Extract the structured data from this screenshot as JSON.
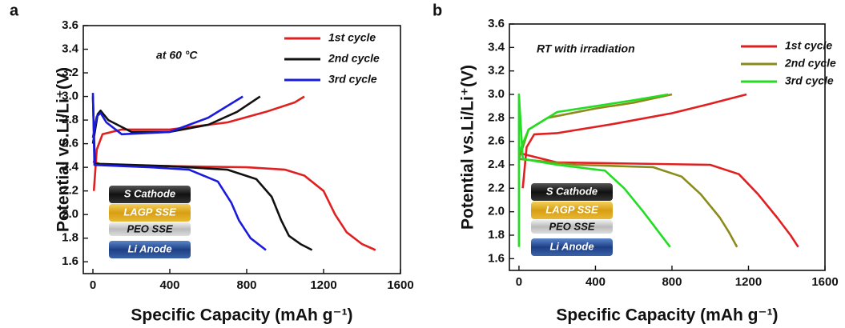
{
  "chart_data": [
    {
      "type": "line",
      "panel": "a",
      "annotation": "at 60 °C",
      "xlabel": "Specific Capacity (mAh g⁻¹)",
      "ylabel": "Potential vs.Li/Li⁺(V)",
      "xlim": [
        -50,
        1600
      ],
      "xticks": [
        0,
        400,
        800,
        1200,
        1600
      ],
      "ylim": [
        1.5,
        3.6
      ],
      "yticks": [
        1.6,
        1.8,
        {
          "value": 2,
          "label": "2.0"
        },
        2.2,
        2.4,
        2.6,
        2.8,
        {
          "value": 3,
          "label": "3.0"
        },
        3.2,
        3.4,
        3.6
      ],
      "inset_layers": [
        "S Cathode",
        "LAGP SSE",
        "PEO SSE",
        "Li Anode"
      ],
      "series": [
        {
          "name": "1st cycle",
          "color": "#e02020",
          "x": [
            0,
            50,
            400,
            800,
            1000,
            1100,
            1200,
            1260,
            1320,
            1400,
            1470,
            null,
            5,
            20,
            50,
            150,
            400,
            700,
            900,
            1050,
            1100
          ],
          "values": [
            2.45,
            2.42,
            2.41,
            2.4,
            2.38,
            2.33,
            2.2,
            2.0,
            1.85,
            1.75,
            1.7,
            null,
            2.2,
            2.55,
            2.68,
            2.72,
            2.72,
            2.78,
            2.87,
            2.95,
            3.0
          ]
        },
        {
          "name": "2nd cycle",
          "color": "#111111",
          "x": [
            0,
            10,
            400,
            700,
            850,
            930,
            980,
            1020,
            1080,
            1140,
            null,
            0,
            25,
            40,
            80,
            200,
            400,
            600,
            750,
            870
          ],
          "values": [
            3.0,
            2.43,
            2.41,
            2.38,
            2.3,
            2.15,
            1.95,
            1.82,
            1.75,
            1.7,
            null,
            2.6,
            2.85,
            2.88,
            2.8,
            2.7,
            2.7,
            2.76,
            2.87,
            3.0
          ]
        },
        {
          "name": "3rd cycle",
          "color": "#1a1adc",
          "x": [
            0,
            8,
            300,
            500,
            650,
            720,
            760,
            820,
            900,
            null,
            0,
            20,
            40,
            70,
            150,
            400,
            600,
            780
          ],
          "values": [
            3.03,
            2.42,
            2.4,
            2.38,
            2.28,
            2.1,
            1.95,
            1.8,
            1.7,
            null,
            2.65,
            2.83,
            2.86,
            2.78,
            2.68,
            2.7,
            2.82,
            3.0
          ]
        }
      ]
    },
    {
      "type": "line",
      "panel": "b",
      "annotation": "RT with irradiation",
      "xlabel": "Specific Capacity (mAh g⁻¹)",
      "ylabel": "Potential vs.Li/Li⁺(V)",
      "xlim": [
        -50,
        1600
      ],
      "xticks": [
        0,
        400,
        800,
        1200,
        1600
      ],
      "ylim": [
        1.5,
        3.6
      ],
      "yticks": [
        1.6,
        1.8,
        {
          "value": 2,
          "label": "2.0"
        },
        2.2,
        2.4,
        2.6,
        2.8,
        {
          "value": 3,
          "label": "3.0"
        },
        3.2,
        3.4,
        3.6
      ],
      "inset_layers": [
        "S Cathode",
        "LAGP SSE",
        "PEO SSE",
        "Li Anode"
      ],
      "series": [
        {
          "name": "1st cycle",
          "color": "#e02020",
          "x": [
            0,
            200,
            600,
            1000,
            1150,
            1250,
            1350,
            1420,
            1460,
            null,
            20,
            40,
            80,
            200,
            500,
            800,
            1000,
            1190
          ],
          "values": [
            2.5,
            2.42,
            2.41,
            2.4,
            2.32,
            2.15,
            1.95,
            1.8,
            1.7,
            null,
            2.2,
            2.55,
            2.66,
            2.67,
            2.75,
            2.84,
            2.92,
            3.0
          ]
        },
        {
          "name": "2nd cycle",
          "color": "#8b8b1a",
          "x": [
            0,
            300,
            700,
            850,
            950,
            1050,
            1100,
            1140,
            null,
            0,
            50,
            150,
            400,
            600,
            800
          ],
          "values": [
            2.45,
            2.4,
            2.38,
            2.3,
            2.15,
            1.95,
            1.82,
            1.7,
            null,
            2.45,
            2.7,
            2.8,
            2.88,
            2.93,
            3.0
          ]
        },
        {
          "name": "3rd cycle",
          "color": "#22dd22",
          "x": [
            0,
            0,
            20,
            200,
            450,
            550,
            650,
            720,
            790,
            null,
            0,
            50,
            200,
            400,
            600,
            780
          ],
          "values": [
            1.7,
            3.0,
            2.45,
            2.4,
            2.35,
            2.2,
            2.0,
            1.85,
            1.7,
            null,
            2.5,
            2.7,
            2.85,
            2.9,
            2.95,
            3.0
          ]
        }
      ]
    }
  ]
}
